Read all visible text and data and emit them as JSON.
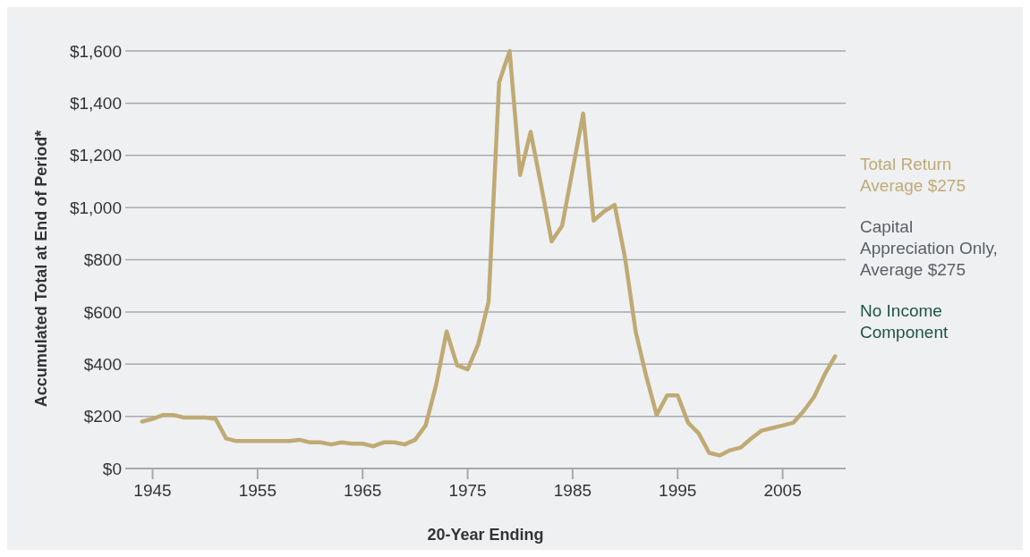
{
  "chart_data": {
    "type": "line",
    "xlabel": "20-Year Ending",
    "ylabel": "Accumulated Total at End of Period*",
    "x": [
      1944,
      1945,
      1946,
      1947,
      1948,
      1949,
      1950,
      1951,
      1952,
      1953,
      1954,
      1955,
      1956,
      1957,
      1958,
      1959,
      1960,
      1961,
      1962,
      1963,
      1964,
      1965,
      1966,
      1967,
      1968,
      1969,
      1970,
      1971,
      1972,
      1973,
      1974,
      1975,
      1976,
      1977,
      1978,
      1979,
      1980,
      1981,
      1982,
      1983,
      1984,
      1985,
      1986,
      1987,
      1988,
      1989,
      1990,
      1991,
      1992,
      1993,
      1994,
      1995,
      1996,
      1997,
      1998,
      1999,
      2000,
      2001,
      2002,
      2003,
      2004,
      2005,
      2006,
      2007,
      2008,
      2009,
      2010
    ],
    "series": [
      {
        "name": "Total Return Average $275",
        "color": "#c0aa74",
        "values": [
          180,
          190,
          205,
          205,
          195,
          195,
          195,
          190,
          115,
          105,
          105,
          105,
          105,
          105,
          105,
          110,
          100,
          100,
          92,
          100,
          95,
          95,
          85,
          100,
          100,
          92,
          110,
          165,
          320,
          525,
          395,
          380,
          475,
          640,
          1480,
          1600,
          1125,
          1290,
          1085,
          870,
          930,
          1145,
          1360,
          950,
          985,
          1010,
          805,
          525,
          355,
          205,
          280,
          280,
          175,
          135,
          60,
          50,
          70,
          80,
          115,
          145,
          155,
          165,
          175,
          220,
          275,
          360,
          430
        ]
      }
    ],
    "annotations": [
      "Capital Appreciation Only, Average $275",
      "No Income Component"
    ],
    "xlim": [
      1942.4,
      2011
    ],
    "xticks": [
      1945,
      1955,
      1965,
      1975,
      1985,
      1995,
      2005
    ],
    "ylim": [
      0,
      1600
    ],
    "yticks": [
      {
        "value": 0,
        "label": "$0"
      },
      {
        "value": 200,
        "label": "$200"
      },
      {
        "value": 400,
        "label": "$400"
      },
      {
        "value": 600,
        "label": "$600"
      },
      {
        "value": 800,
        "label": "$800"
      },
      {
        "value": 1000,
        "label": "$1,000"
      },
      {
        "value": 1200,
        "label": "$1,200"
      },
      {
        "value": 1400,
        "label": "$1,400"
      },
      {
        "value": 1600,
        "label": "$1,600"
      }
    ],
    "grid": "y",
    "legend": "right",
    "line_style": "solid"
  }
}
